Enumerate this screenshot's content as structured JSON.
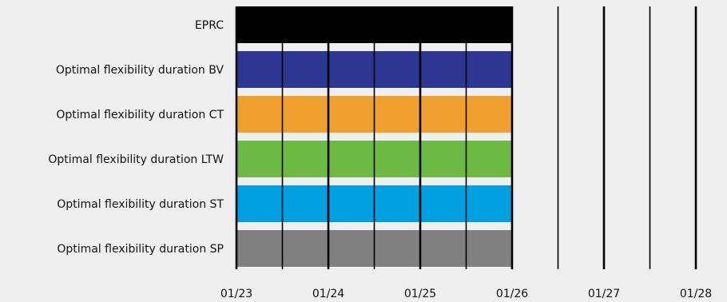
{
  "chart_data": {
    "type": "bar",
    "orientation": "horizontal",
    "subtype": "timeline",
    "title": "",
    "xlabel": "",
    "ylabel": "",
    "categories": [
      "EPRC",
      "Optimal flexibility duration BV",
      "Optimal flexibility duration CT",
      "Optimal flexibility duration LTW",
      "Optimal flexibility duration ST",
      "Optimal flexibility duration SP"
    ],
    "bars": [
      {
        "category": "EPRC",
        "start": "01/23",
        "end": "01/26",
        "color": "#000000"
      },
      {
        "category": "Optimal flexibility duration BV",
        "start": "01/23",
        "end": "01/26",
        "color": "#2c3791"
      },
      {
        "category": "Optimal flexibility duration CT",
        "start": "01/23",
        "end": "01/26",
        "color": "#f0a030"
      },
      {
        "category": "Optimal flexibility duration LTW",
        "start": "01/23",
        "end": "01/26",
        "color": "#6cb944"
      },
      {
        "category": "Optimal flexibility duration ST",
        "start": "01/23",
        "end": "01/26",
        "color": "#009fe0"
      },
      {
        "category": "Optimal flexibility duration SP",
        "start": "01/23",
        "end": "01/26",
        "color": "#808080"
      }
    ],
    "x_ticks": [
      "01/23",
      "01/24",
      "01/25",
      "01/26",
      "01/27",
      "01/28"
    ],
    "xlim": [
      "01/23",
      "01/28"
    ],
    "grid": "vertical lines every half day",
    "gridline_color": "#000000",
    "background": "#efefef"
  }
}
